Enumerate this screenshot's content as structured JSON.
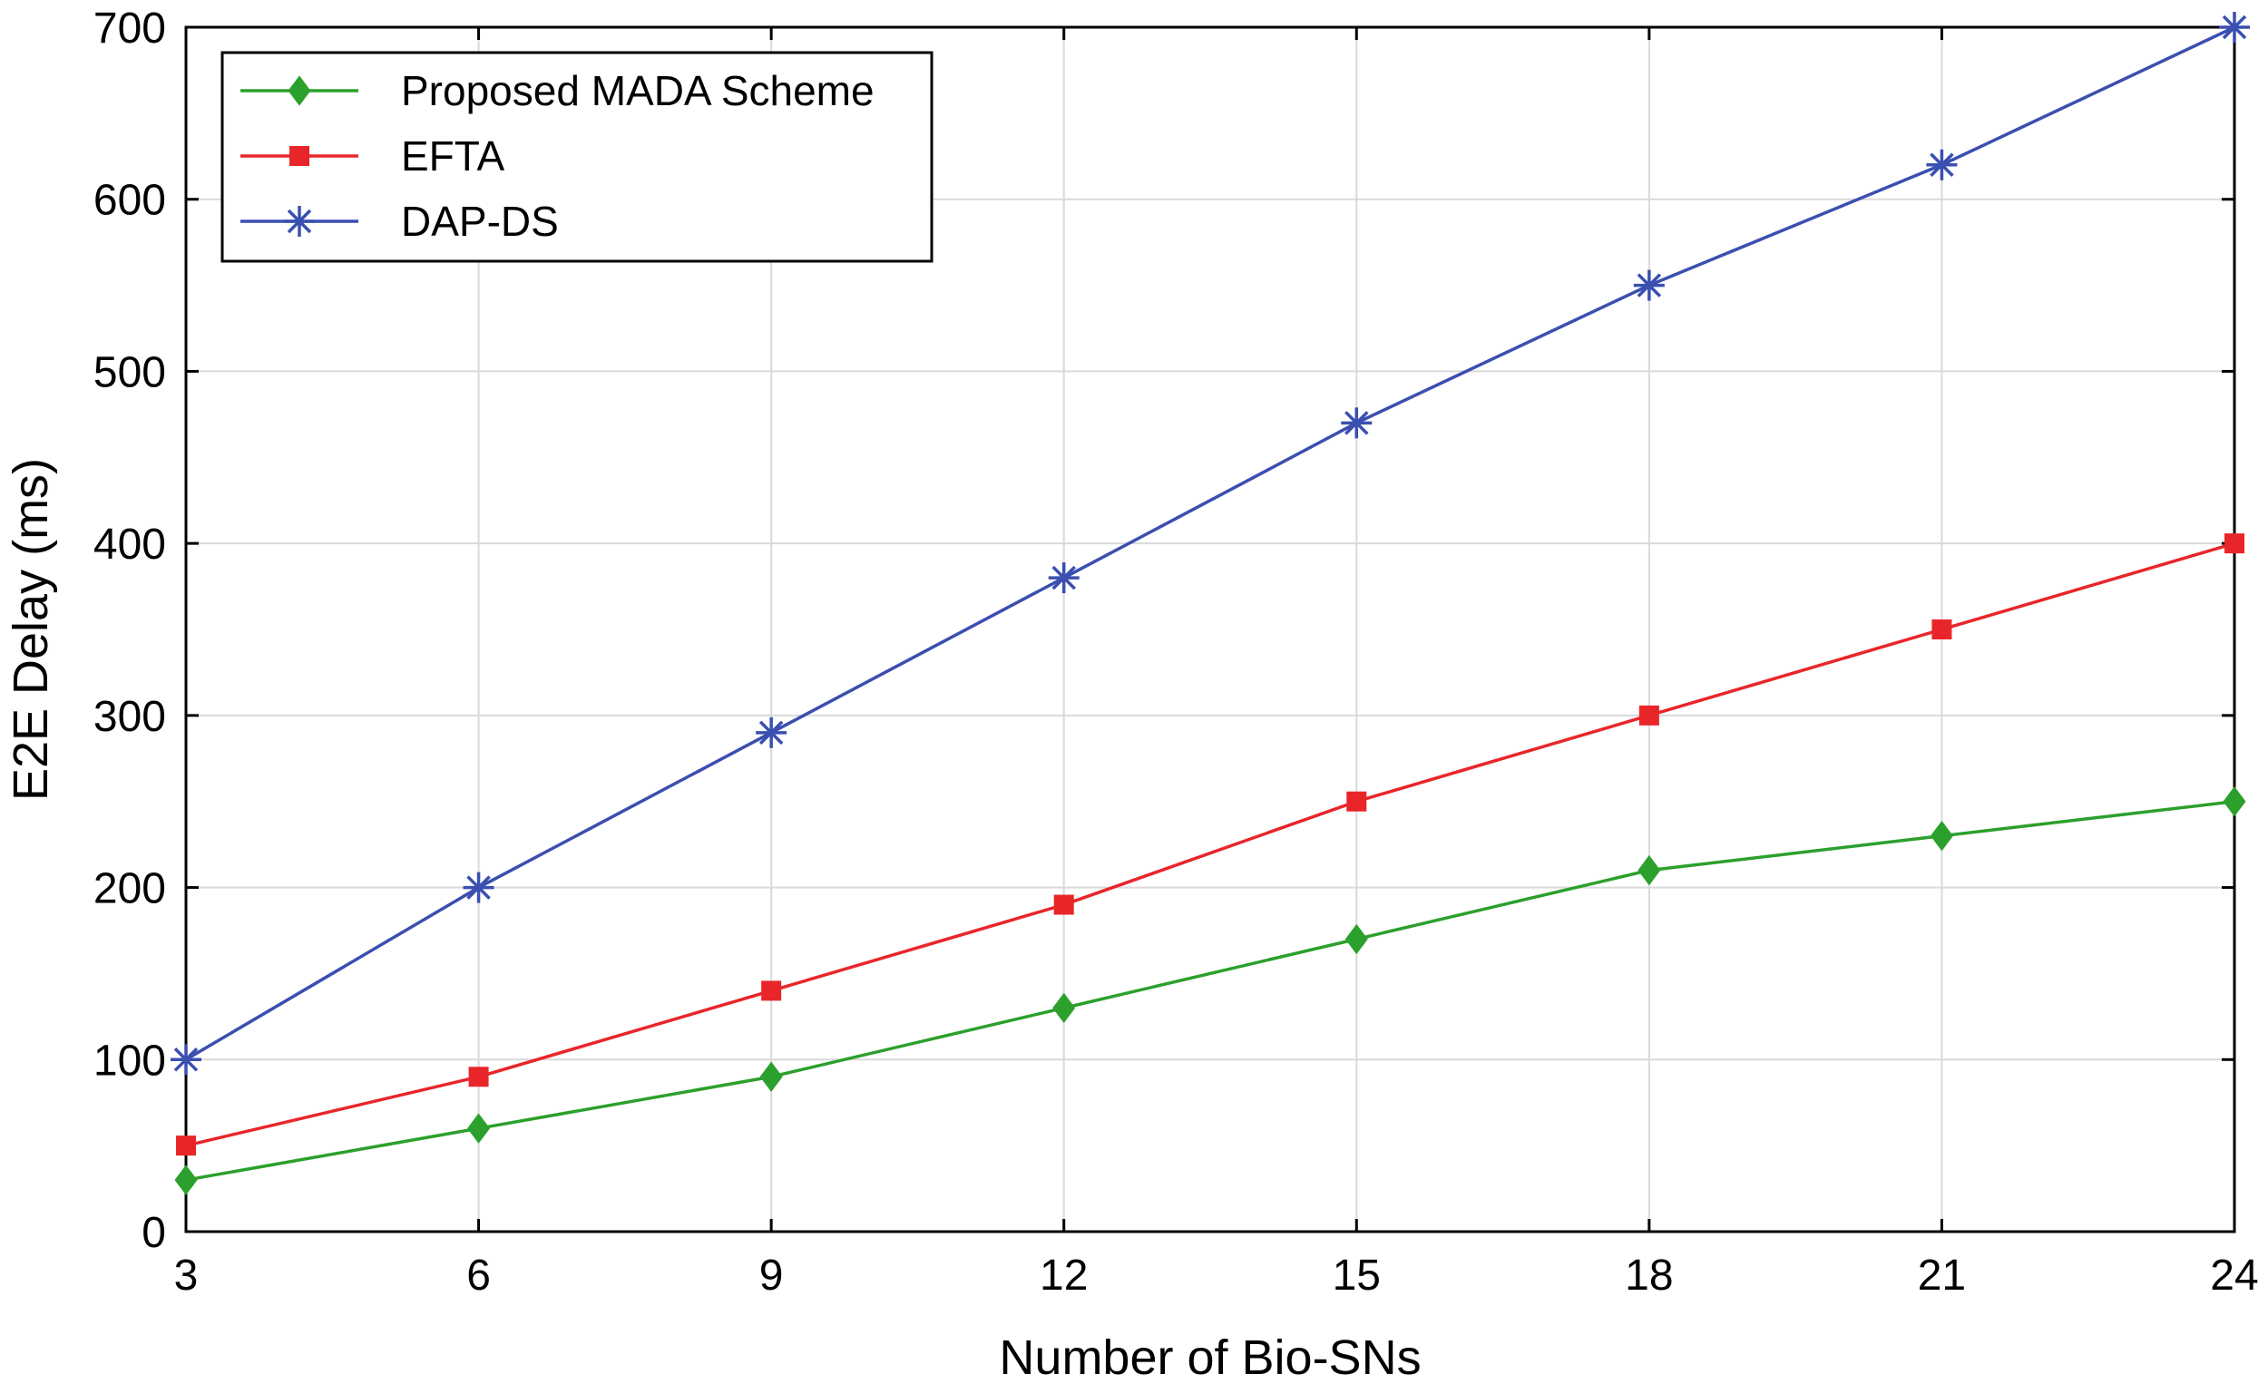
{
  "chart_data": {
    "type": "line",
    "title": "",
    "xlabel": "Number of Bio-SNs",
    "ylabel": "E2E Delay (ms)",
    "x": [
      3,
      6,
      9,
      12,
      15,
      18,
      21,
      24
    ],
    "xlim": [
      3,
      24
    ],
    "ylim": [
      0,
      700
    ],
    "xticks": [
      "3",
      "6",
      "9",
      "12",
      "15",
      "18",
      "21",
      "24"
    ],
    "yticks": [
      "0",
      "100",
      "200",
      "300",
      "400",
      "500",
      "600",
      "700"
    ],
    "grid": true,
    "legend_position": "top-left",
    "series": [
      {
        "name": "Proposed MADA Scheme",
        "color": "#2ca02c",
        "marker": "diamond",
        "values": [
          30,
          60,
          90,
          130,
          170,
          210,
          230,
          250
        ]
      },
      {
        "name": "EFTA",
        "color": "#e8262a",
        "marker": "square",
        "values": [
          50,
          90,
          140,
          190,
          250,
          300,
          350,
          400
        ]
      },
      {
        "name": "DAP-DS",
        "color": "#3a4fb0",
        "marker": "asterisk",
        "values": [
          100,
          200,
          290,
          380,
          470,
          550,
          620,
          700
        ]
      }
    ]
  }
}
